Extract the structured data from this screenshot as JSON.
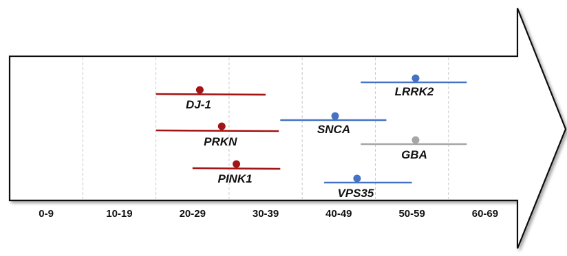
{
  "age_groups": [
    "0-9",
    "10-19",
    "20-29",
    "30-39",
    "40-49",
    "50-59",
    "60-69"
  ],
  "genes": [
    {
      "name": "DJ-1",
      "color": "#a31515",
      "range": [
        20,
        35
      ],
      "onset": 26
    },
    {
      "name": "PRKN",
      "color": "#a31515",
      "range": [
        20,
        36.8
      ],
      "onset": 29
    },
    {
      "name": "PINK1",
      "color": "#a31515",
      "range": [
        25,
        37
      ],
      "onset": 31
    },
    {
      "name": "SNCA",
      "color": "#4472c4",
      "range": [
        37,
        51.5
      ],
      "onset": 44.5
    },
    {
      "name": "LRRK2",
      "color": "#4472c4",
      "range": [
        48,
        62.5
      ],
      "onset": 55.5
    },
    {
      "name": "GBA",
      "color": "#a6a6a6",
      "range": [
        48,
        62.5
      ],
      "onset": 55.5
    },
    {
      "name": "VPS35",
      "color": "#4472c4",
      "range": [
        43,
        55
      ],
      "onset": 47.5
    }
  ],
  "colors": {
    "arrow_outline": "#111111",
    "gridline": "#c8c8c8"
  }
}
